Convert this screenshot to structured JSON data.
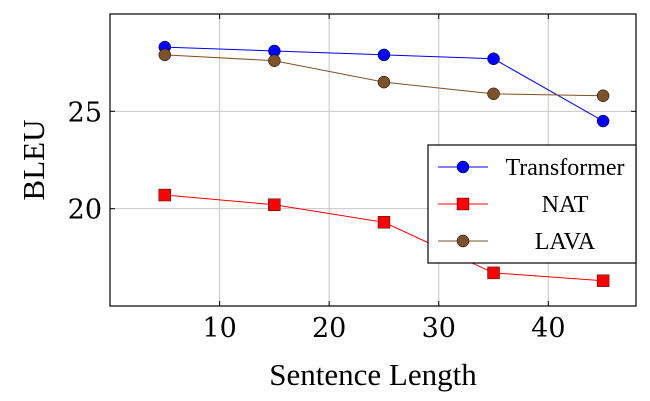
{
  "chart_data": {
    "type": "line",
    "title": "",
    "xlabel": "Sentence Length",
    "ylabel": "BLEU",
    "xlim": [
      0,
      48
    ],
    "ylim": [
      15,
      30
    ],
    "xticks": [
      10,
      20,
      30,
      40
    ],
    "yticks": [
      20,
      25
    ],
    "grid": true,
    "legend_position": "center-right",
    "x": [
      5,
      15,
      25,
      35,
      45
    ],
    "series": [
      {
        "name": "Transformer",
        "values": [
          28.3,
          28.1,
          27.9,
          27.7,
          24.5
        ],
        "color": "#0000ff",
        "marker": "circle"
      },
      {
        "name": "NAT",
        "values": [
          20.7,
          20.2,
          19.3,
          16.7,
          16.3
        ],
        "color": "#ff0000",
        "marker": "square"
      },
      {
        "name": "LAVA",
        "values": [
          27.9,
          27.6,
          26.5,
          25.9,
          25.8
        ],
        "color": "#7d5229",
        "marker": "circle"
      }
    ]
  }
}
